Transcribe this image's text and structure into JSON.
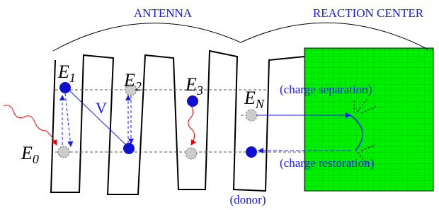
{
  "header": {
    "antenna": "ANTENNA",
    "reaction_center": "REACTION CENTER"
  },
  "levels": [
    {
      "symbol": "E",
      "subscript": "1"
    },
    {
      "symbol": "E",
      "subscript": "2"
    },
    {
      "symbol": "E",
      "subscript": "3"
    },
    {
      "symbol": "E",
      "subscript": "N"
    },
    {
      "symbol": "E",
      "subscript": "0"
    }
  ],
  "coupling": "V",
  "labels": {
    "separation": "(charge separation)",
    "restoration": "(charge restoration)",
    "donor": "(donor)"
  }
}
